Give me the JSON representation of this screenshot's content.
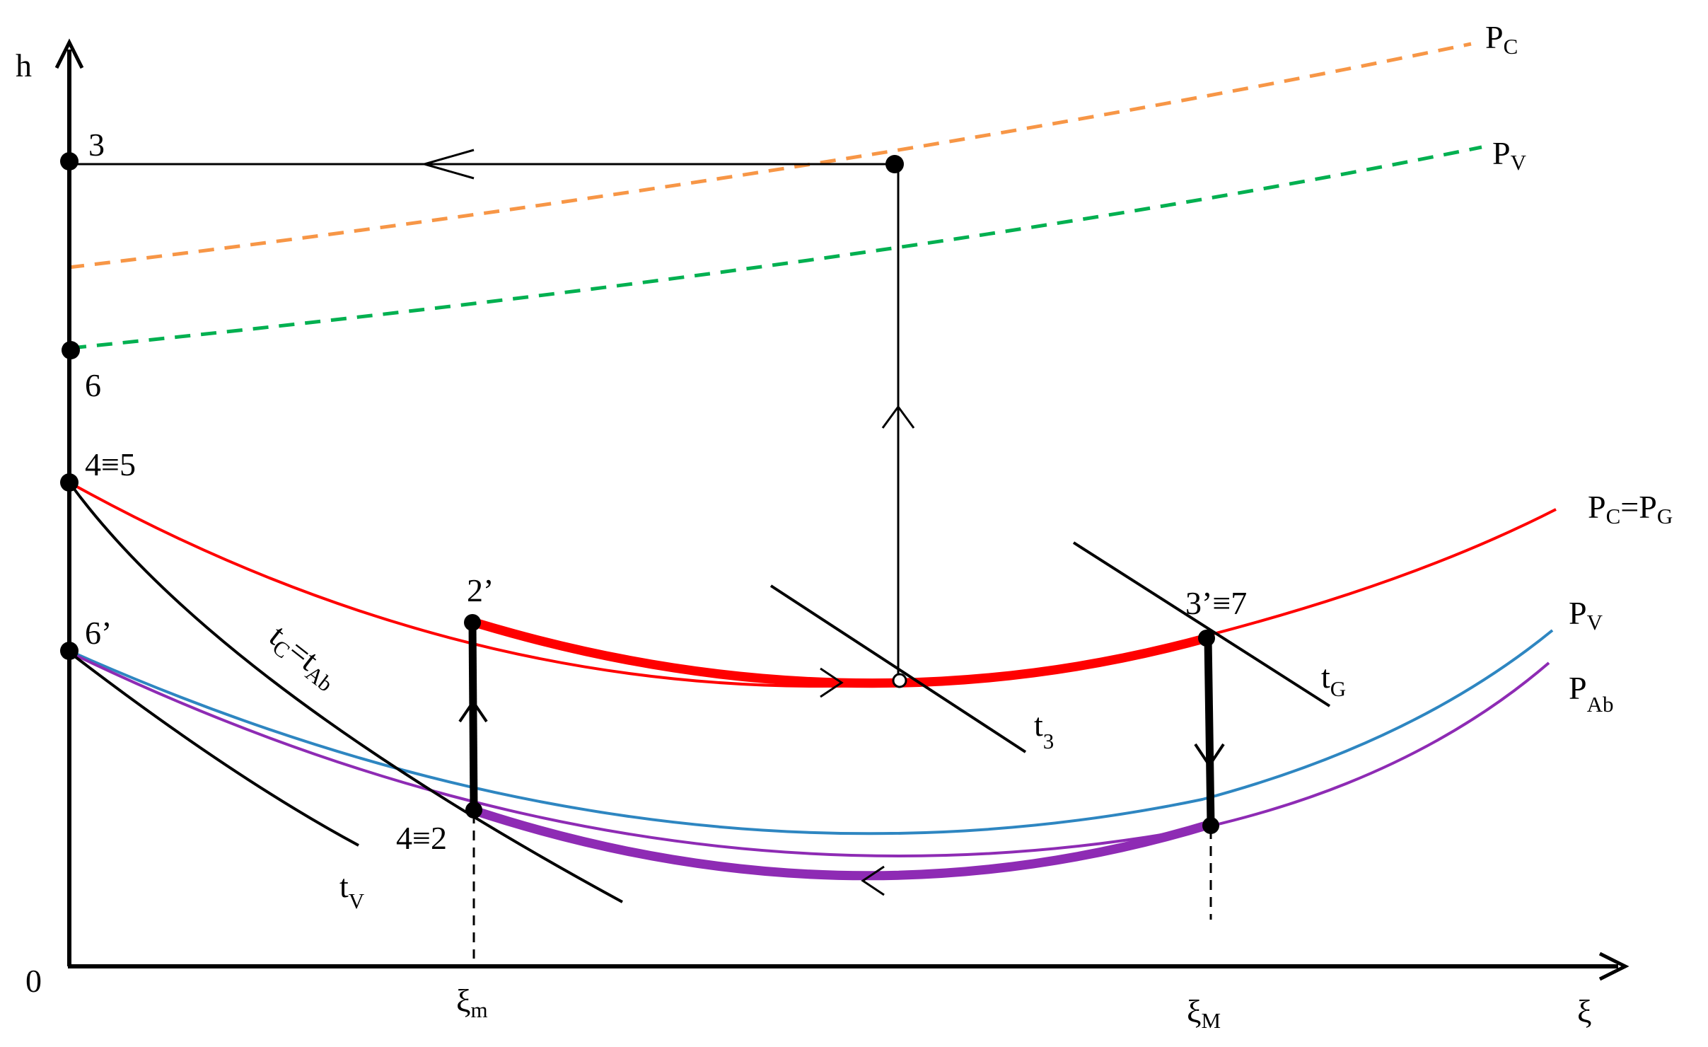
{
  "axes": {
    "y_label": "h",
    "x_label": "ξ",
    "origin_label": "0",
    "x_ticks": [
      {
        "main": "ξ",
        "sub": "m"
      },
      {
        "main": "ξ",
        "sub": "M"
      }
    ]
  },
  "points": {
    "p3": "3",
    "p6": "6",
    "p45": "4≡5",
    "p6p": "6’",
    "p2p": "2’",
    "p42": "4≡2",
    "p3p7": "3’≡7"
  },
  "curves": {
    "pc_dashed": {
      "main": "P",
      "sub": "C",
      "color": "#f79646"
    },
    "pv_dashed": {
      "main": "P",
      "sub": "V",
      "color": "#00b050"
    },
    "pc_pg": {
      "main1": "P",
      "sub1": "C",
      "eq": "=P",
      "sub2": "G",
      "color": "#ff0000"
    },
    "pv": {
      "main": "P",
      "sub": "V",
      "color": "#2e86c1"
    },
    "pab": {
      "main": "P",
      "sub": "Ab",
      "color": "#8e2bb4"
    }
  },
  "isotherms": {
    "tc_tab": {
      "main1": "t",
      "sub1": "C",
      "eq": "=t",
      "sub2": "Ab"
    },
    "tv": {
      "main": "t",
      "sub": "V"
    },
    "t3": {
      "main": "t",
      "sub": "3"
    },
    "tg": {
      "main": "t",
      "sub": "G"
    }
  }
}
